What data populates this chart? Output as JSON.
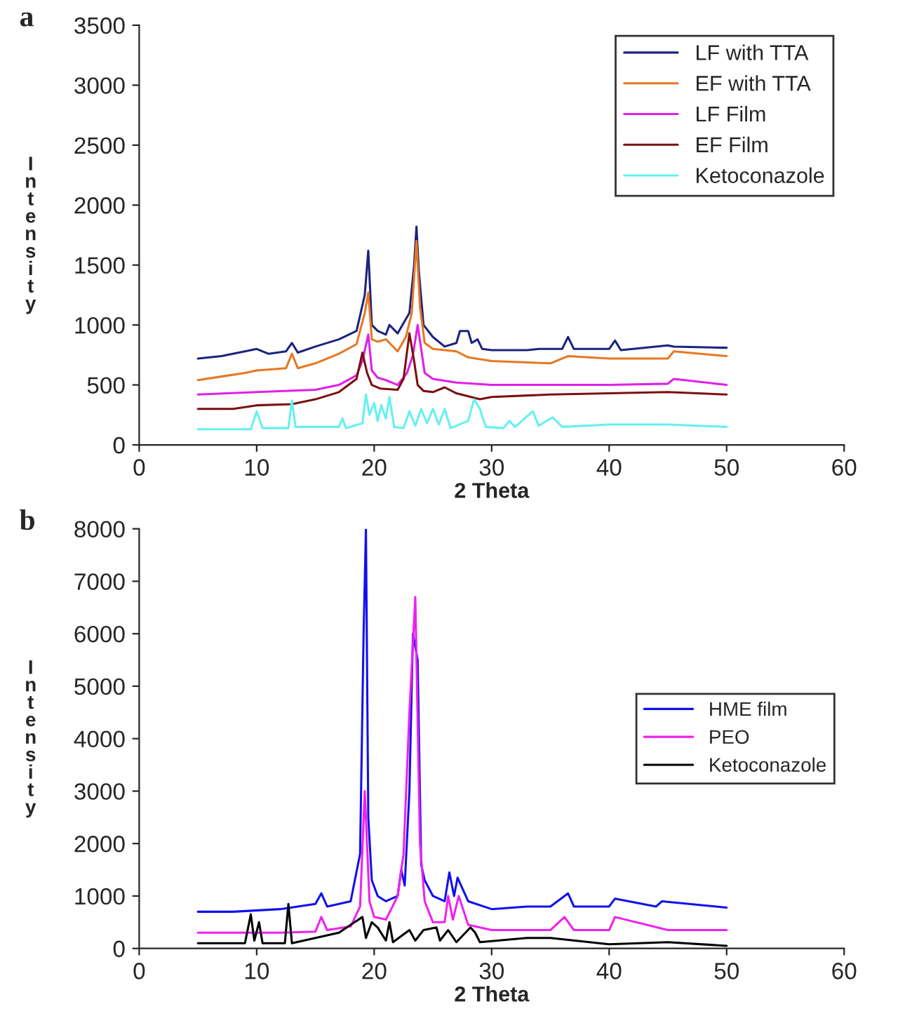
{
  "chart_data": [
    {
      "type": "line",
      "title": "a",
      "xlabel": "2 Theta",
      "ylabel": "Intensity",
      "xlim": [
        0,
        60
      ],
      "xticks": [
        0,
        10,
        20,
        30,
        40,
        50,
        60
      ],
      "ylim": [
        0,
        3500
      ],
      "yticks": [
        0,
        500,
        1000,
        1500,
        2000,
        2500,
        3000,
        3500
      ],
      "legend": "top right",
      "grid": false,
      "marker": "none",
      "line_style": "solid",
      "series": [
        {
          "name": "LF with TTA",
          "color": "#1c237e",
          "x": [
            5,
            7,
            9,
            10,
            11,
            12.5,
            13,
            13.5,
            15,
            17,
            18.5,
            19.2,
            19.5,
            19.8,
            20.3,
            21,
            21.3,
            22,
            23,
            23.4,
            23.6,
            23.8,
            24.2,
            25,
            26,
            27,
            27.3,
            28,
            28.3,
            28.8,
            29.2,
            30,
            33,
            34,
            36,
            36.5,
            37,
            40,
            40.5,
            41,
            45,
            45.5,
            50
          ],
          "values": [
            720,
            740,
            780,
            800,
            760,
            780,
            850,
            770,
            820,
            880,
            950,
            1250,
            1620,
            1000,
            950,
            920,
            1000,
            930,
            1100,
            1500,
            1820,
            1450,
            1000,
            900,
            820,
            850,
            950,
            950,
            850,
            880,
            800,
            790,
            790,
            800,
            800,
            900,
            800,
            800,
            870,
            790,
            830,
            820,
            810
          ]
        },
        {
          "name": "EF with TTA",
          "color": "#e87722",
          "x": [
            5,
            7,
            9,
            10,
            12.5,
            13,
            13.5,
            15,
            17,
            18.5,
            19.2,
            19.5,
            19.8,
            20.3,
            21,
            21.5,
            22,
            22.7,
            23.2,
            23.6,
            23.9,
            24.3,
            25,
            27,
            28,
            30,
            35,
            36.5,
            40,
            45,
            45.5,
            50
          ],
          "values": [
            540,
            570,
            600,
            620,
            640,
            760,
            640,
            680,
            760,
            840,
            1100,
            1270,
            880,
            860,
            880,
            830,
            780,
            900,
            1100,
            1700,
            1150,
            850,
            800,
            780,
            730,
            700,
            680,
            740,
            720,
            720,
            780,
            740
          ]
        },
        {
          "name": "LF Film",
          "color": "#e020e8",
          "x": [
            5,
            10,
            15,
            17,
            18.5,
            19,
            19.5,
            19.8,
            20.3,
            21,
            22,
            22.8,
            23.3,
            23.7,
            24,
            24.3,
            25,
            27,
            30,
            35,
            40,
            45,
            45.5,
            50
          ],
          "values": [
            420,
            440,
            460,
            500,
            580,
            700,
            920,
            620,
            560,
            540,
            500,
            600,
            750,
            1000,
            800,
            600,
            550,
            520,
            500,
            500,
            500,
            510,
            550,
            500
          ]
        },
        {
          "name": "EF Film",
          "color": "#7a1010",
          "x": [
            5,
            8,
            10,
            13,
            15,
            17,
            18.5,
            19,
            19.4,
            19.8,
            20.5,
            22,
            22.5,
            23,
            23.4,
            23.7,
            24.2,
            25,
            26,
            27,
            29,
            30,
            35,
            40,
            45,
            50
          ],
          "values": [
            300,
            300,
            330,
            340,
            380,
            440,
            550,
            770,
            600,
            500,
            470,
            460,
            550,
            930,
            700,
            500,
            450,
            440,
            480,
            430,
            380,
            400,
            420,
            430,
            440,
            420
          ]
        },
        {
          "name": "Ketoconazole",
          "color": "#66f0f0",
          "x": [
            5,
            9.5,
            10,
            10.5,
            12.7,
            13,
            13.3,
            17,
            17.3,
            17.6,
            19,
            19.3,
            19.6,
            20,
            20.3,
            20.6,
            21,
            21.3,
            21.7,
            22.5,
            23,
            23.5,
            24,
            24.5,
            25,
            25.5,
            26,
            26.5,
            28,
            28.5,
            29,
            29.5,
            31,
            31.5,
            32,
            33.5,
            34,
            35.2,
            36,
            40,
            45,
            50
          ],
          "values": [
            130,
            130,
            280,
            140,
            140,
            370,
            150,
            150,
            220,
            140,
            180,
            420,
            250,
            350,
            200,
            330,
            220,
            400,
            150,
            140,
            280,
            160,
            300,
            180,
            300,
            170,
            300,
            140,
            200,
            380,
            300,
            150,
            140,
            200,
            150,
            280,
            160,
            230,
            150,
            170,
            170,
            150
          ]
        }
      ]
    },
    {
      "type": "line",
      "title": "b",
      "xlabel": "2 Theta",
      "ylabel": "Intensity",
      "xlim": [
        0,
        60
      ],
      "xticks": [
        0,
        10,
        20,
        30,
        40,
        50,
        60
      ],
      "ylim": [
        0,
        8000
      ],
      "yticks": [
        0,
        1000,
        2000,
        3000,
        4000,
        5000,
        6000,
        7000,
        8000
      ],
      "legend": "right",
      "grid": false,
      "marker": "none",
      "line_style": "solid",
      "series": [
        {
          "name": "HME film",
          "color": "#1010f0",
          "x": [
            5,
            8,
            12,
            15,
            15.5,
            16,
            17,
            18,
            18.8,
            19.1,
            19.3,
            19.5,
            19.8,
            20.3,
            21,
            22,
            22.3,
            22.6,
            23,
            23.3,
            23.7,
            24,
            24.3,
            25,
            26,
            26.4,
            26.8,
            27.1,
            28,
            30,
            33,
            35,
            36.5,
            37,
            40,
            40.5,
            44,
            44.5,
            50
          ],
          "values": [
            700,
            700,
            750,
            850,
            1050,
            800,
            850,
            900,
            1800,
            6000,
            8000,
            2500,
            1300,
            1000,
            900,
            1000,
            1500,
            1200,
            3000,
            6000,
            5500,
            1600,
            1300,
            1000,
            900,
            1450,
            1000,
            1350,
            900,
            750,
            800,
            800,
            1050,
            800,
            800,
            950,
            800,
            900,
            780
          ]
        },
        {
          "name": "PEO",
          "color": "#f020f0",
          "x": [
            5,
            12,
            15,
            15.5,
            16,
            18,
            18.8,
            19.2,
            19.6,
            20,
            21,
            22,
            22.5,
            23,
            23.5,
            23.9,
            24.3,
            25,
            26,
            26.3,
            26.7,
            27.2,
            28,
            30,
            35,
            36.2,
            37,
            40,
            40.5,
            45,
            50
          ],
          "values": [
            300,
            300,
            320,
            600,
            350,
            420,
            800,
            3000,
            900,
            600,
            550,
            1000,
            1800,
            4500,
            6700,
            2000,
            900,
            500,
            500,
            1000,
            550,
            1000,
            450,
            350,
            350,
            600,
            350,
            350,
            600,
            350,
            350
          ]
        },
        {
          "name": "Ketoconazole",
          "color": "#000000",
          "x": [
            5,
            9,
            9.5,
            9.8,
            10.2,
            10.5,
            12.4,
            12.7,
            13,
            17,
            19,
            19.3,
            19.8,
            20.3,
            21,
            21.3,
            21.6,
            23,
            23.5,
            24.2,
            25.3,
            25.6,
            26.3,
            27,
            28.2,
            28.6,
            29,
            33,
            35,
            40,
            45,
            50
          ],
          "values": [
            100,
            100,
            650,
            150,
            500,
            100,
            100,
            850,
            100,
            300,
            600,
            200,
            500,
            400,
            150,
            500,
            120,
            350,
            150,
            350,
            400,
            150,
            350,
            120,
            400,
            300,
            120,
            200,
            200,
            80,
            120,
            50
          ]
        }
      ]
    }
  ]
}
